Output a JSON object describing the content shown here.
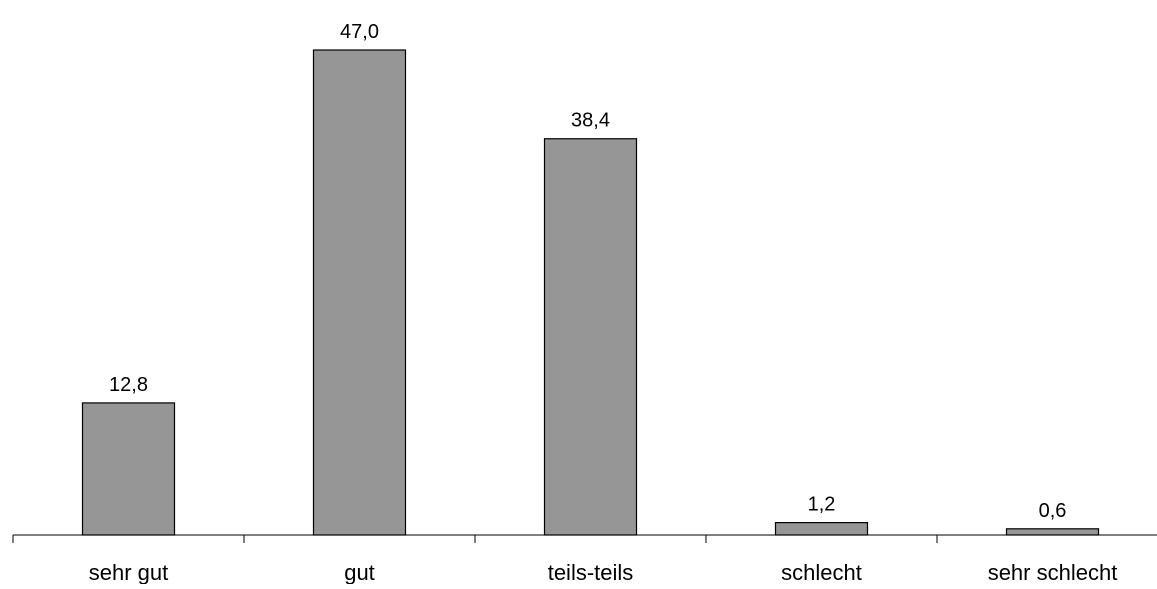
{
  "chart_data": {
    "type": "bar",
    "categories": [
      "sehr gut",
      "gut",
      "teils-teils",
      "schlecht",
      "sehr schlecht"
    ],
    "values": [
      12.8,
      47.0,
      38.4,
      1.2,
      0.6
    ],
    "value_labels": [
      "12,8",
      "47,0",
      "38,4",
      "1,2",
      "0,6"
    ],
    "ylim": [
      0,
      50
    ],
    "grid": false,
    "legend": "none",
    "bar_color": "#969696",
    "title": "",
    "xlabel": "",
    "ylabel": ""
  }
}
